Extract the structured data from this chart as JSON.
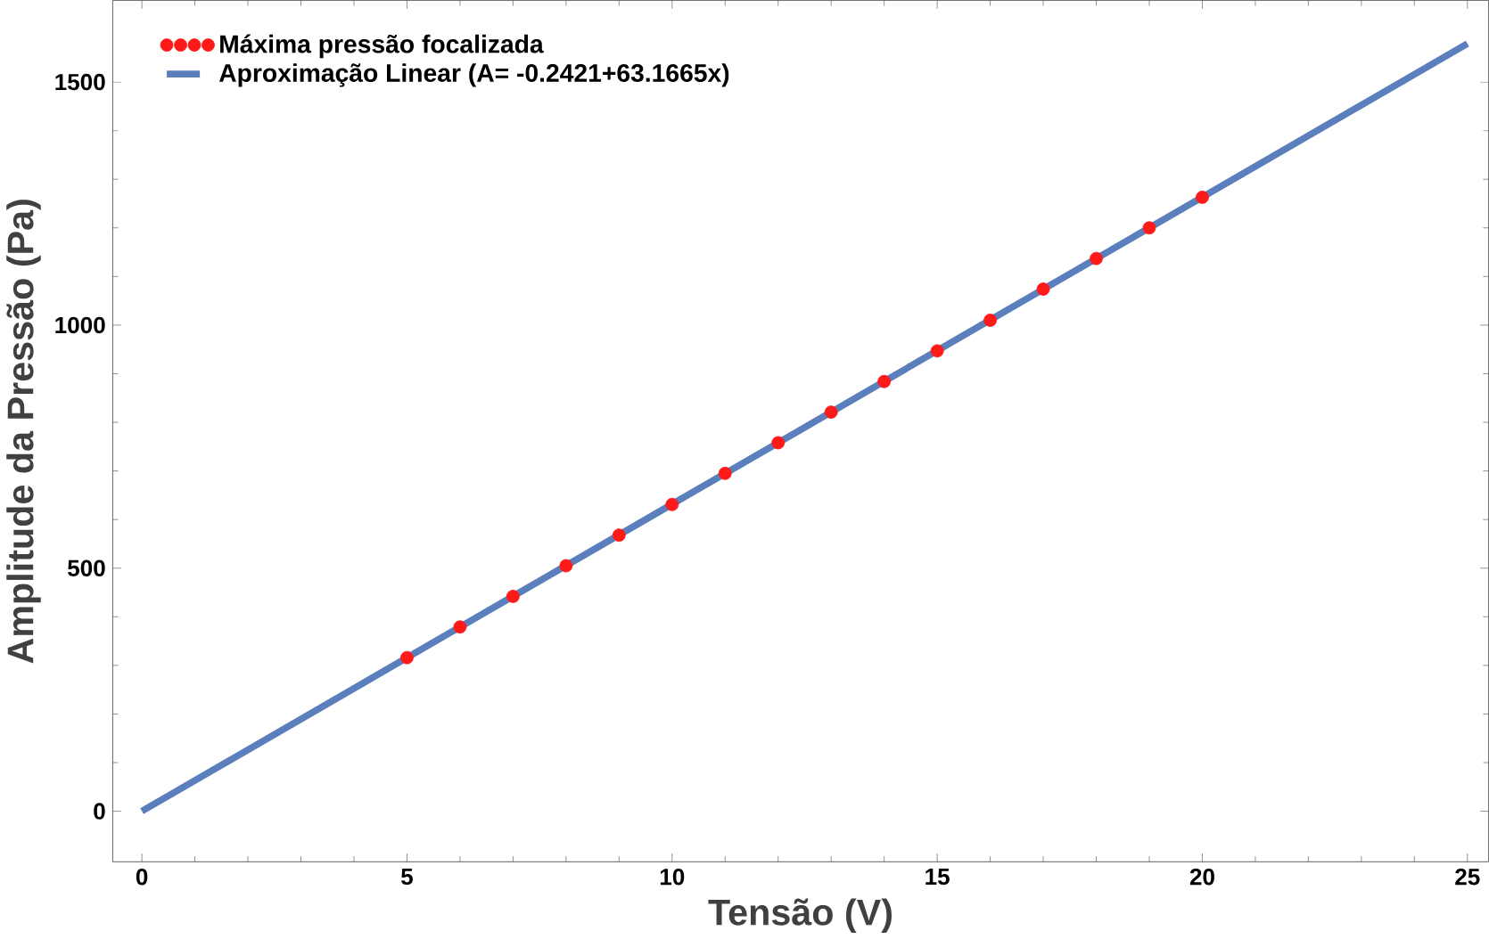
{
  "chart_data": {
    "type": "scatter",
    "xlabel": "Tensão (V)",
    "ylabel": "Amplitude da Pressão (Pa)",
    "xlim": [
      -0.55,
      25.4
    ],
    "ylim": [
      -104,
      1668
    ],
    "xticks": [
      0,
      5,
      10,
      15,
      20,
      25
    ],
    "yticks": [
      0,
      500,
      1000,
      1500
    ],
    "legend": "top left",
    "grid": false,
    "series": [
      {
        "name": "Máxima pressão focalizada",
        "color": "#ff1a1a",
        "marker": "circle",
        "x": [
          5,
          6,
          7,
          8,
          9,
          10,
          11,
          12,
          13,
          14,
          15,
          16,
          17,
          18,
          19,
          20
        ],
        "values": [
          316,
          379,
          442,
          505,
          568,
          631,
          695,
          758,
          821,
          884,
          947,
          1010,
          1074,
          1137,
          1200,
          1263
        ]
      },
      {
        "name": "Aproximação Linear (A= -0.2421+63.1665x)",
        "type": "line",
        "color": "#5b7fbd",
        "marker": "none",
        "line_style": "solid",
        "x": [
          0,
          25
        ],
        "values": [
          0,
          1579
        ]
      }
    ]
  }
}
